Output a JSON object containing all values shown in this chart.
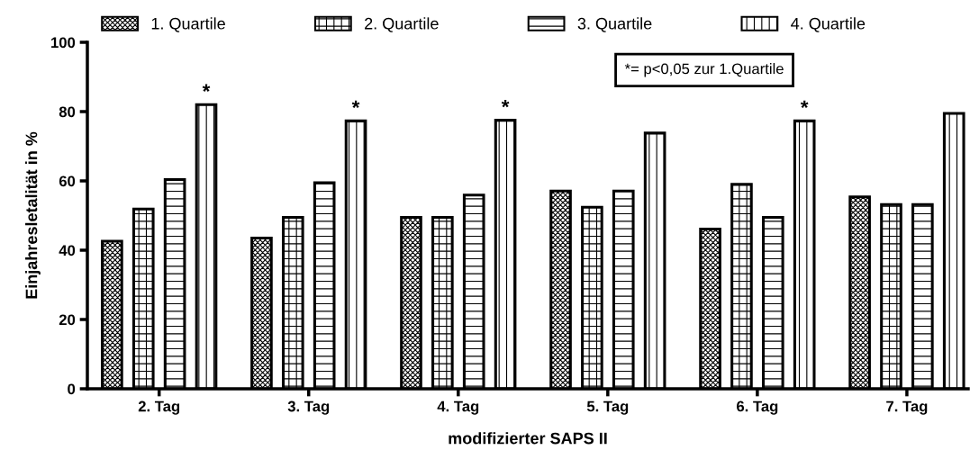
{
  "chart_data": {
    "type": "bar",
    "xlabel": "modifizierter SAPS II",
    "ylabel": "Einjahresletalität in %",
    "categories": [
      "2. Tag",
      "3. Tag",
      "4. Tag",
      "5. Tag",
      "6. Tag",
      "7. Tag"
    ],
    "series": [
      {
        "name": "1. Quartile",
        "color": "#000000",
        "values": [
          42.6,
          43.5,
          49.5,
          57.1,
          46.1,
          55.4
        ]
      },
      {
        "name": "2. Quartile",
        "color": "#000000",
        "values": [
          51.9,
          49.5,
          49.5,
          52.4,
          59.0,
          53.2
        ]
      },
      {
        "name": "3. Quartile",
        "color": "#000000",
        "values": [
          60.4,
          59.5,
          55.9,
          57.1,
          49.5,
          53.2
        ]
      },
      {
        "name": "4. Quartile",
        "color": "#000000",
        "values": [
          82.0,
          77.3,
          77.5,
          73.8,
          77.3,
          79.5
        ],
        "value_labels": [
          "*",
          "*",
          "*",
          null,
          "*",
          null
        ]
      }
    ],
    "ylim": [
      0,
      100
    ],
    "yticks": [
      0,
      20,
      40,
      60,
      80,
      100
    ],
    "grid": false,
    "legend": "top",
    "annotations": [
      "*= p<0,05 zur 1.Quartile"
    ]
  }
}
